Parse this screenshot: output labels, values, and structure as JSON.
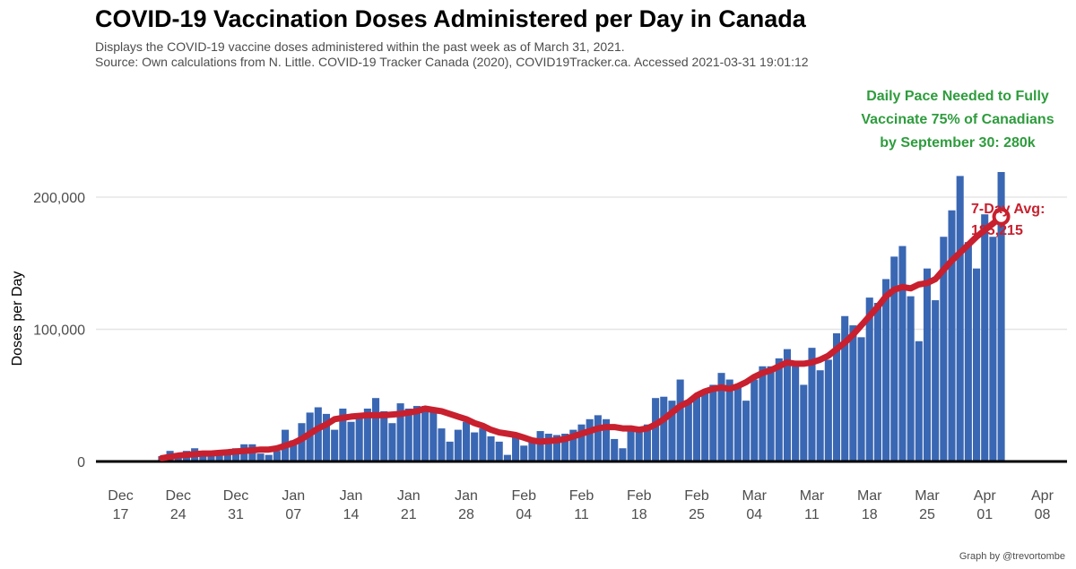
{
  "title": "COVID-19 Vaccination Doses Administered per Day in Canada",
  "subtitle_line1": "Displays the COVID-19 vaccine doses administered within the past week as of March 31, 2021.",
  "subtitle_line2": "Source: Own calculations from N. Little. COVID-19 Tracker Canada (2020), COVID19Tracker.ca. Accessed 2021-03-31 19:01:12",
  "caption": "Graph by @trevortombe",
  "colors": {
    "bar": "#3a67b3",
    "avg_line": "#c8202e",
    "annotation_green": "#2e9c3d",
    "annotation_red": "#c8202e",
    "grid": "#e5e5e5"
  },
  "annotations": {
    "pace_lines": [
      "Daily Pace Needed to Fully",
      "Vaccinate 75% of Canadians",
      "by September 30: 280k"
    ],
    "avg_lines": [
      "7-Day Avg:",
      "185,215"
    ]
  },
  "chart_data": {
    "type": "bar",
    "title": "COVID-19 Vaccination Doses Administered per Day in Canada",
    "ylabel": "Doses per Day",
    "xlabel": "",
    "x_start_date": "2020-12-14",
    "ylim": [
      0,
      240000
    ],
    "xlim_dates": [
      "2020-12-14",
      "2021-04-11"
    ],
    "y_ticks": [
      0,
      100000,
      200000
    ],
    "y_tick_labels": [
      "0",
      "100,000",
      "200,000"
    ],
    "x_ticks": [
      {
        "date": "2020-12-17",
        "line1": "Dec",
        "line2": "17"
      },
      {
        "date": "2020-12-24",
        "line1": "Dec",
        "line2": "24"
      },
      {
        "date": "2020-12-31",
        "line1": "Dec",
        "line2": "31"
      },
      {
        "date": "2021-01-07",
        "line1": "Jan",
        "line2": "07"
      },
      {
        "date": "2021-01-14",
        "line1": "Jan",
        "line2": "14"
      },
      {
        "date": "2021-01-21",
        "line1": "Jan",
        "line2": "21"
      },
      {
        "date": "2021-01-28",
        "line1": "Jan",
        "line2": "28"
      },
      {
        "date": "2021-02-04",
        "line1": "Feb",
        "line2": "04"
      },
      {
        "date": "2021-02-11",
        "line1": "Feb",
        "line2": "11"
      },
      {
        "date": "2021-02-18",
        "line1": "Feb",
        "line2": "18"
      },
      {
        "date": "2021-02-25",
        "line1": "Feb",
        "line2": "25"
      },
      {
        "date": "2021-03-04",
        "line1": "Mar",
        "line2": "04"
      },
      {
        "date": "2021-03-11",
        "line1": "Mar",
        "line2": "11"
      },
      {
        "date": "2021-03-18",
        "line1": "Mar",
        "line2": "18"
      },
      {
        "date": "2021-03-25",
        "line1": "Mar",
        "line2": "25"
      },
      {
        "date": "2021-04-01",
        "line1": "Apr",
        "line2": "01"
      },
      {
        "date": "2021-04-08",
        "line1": "Apr",
        "line2": "08"
      }
    ],
    "daily_start_date": "2020-12-22",
    "daily_doses": [
      4000,
      8000,
      6000,
      8000,
      10000,
      5000,
      6000,
      6000,
      7000,
      10000,
      13000,
      13000,
      6000,
      5000,
      8000,
      24000,
      16000,
      29000,
      37000,
      41000,
      36000,
      24000,
      40000,
      30000,
      36000,
      40000,
      48000,
      38000,
      29000,
      44000,
      40000,
      42000,
      42000,
      40000,
      25000,
      15000,
      24000,
      30000,
      22000,
      25000,
      19000,
      15000,
      5000,
      20000,
      12000,
      16000,
      23000,
      21000,
      20000,
      21000,
      24000,
      28000,
      32000,
      35000,
      32000,
      17000,
      10000,
      25000,
      23000,
      28000,
      48000,
      49000,
      46000,
      62000,
      46000,
      50000,
      52000,
      58000,
      67000,
      62000,
      58000,
      46000,
      62000,
      72000,
      72000,
      78000,
      85000,
      72000,
      58000,
      86000,
      69000,
      77000,
      97000,
      110000,
      103000,
      94000,
      124000,
      120000,
      138000,
      155000,
      163000,
      125000,
      91000,
      146000,
      122000,
      170000,
      190000,
      216000,
      166000,
      146000,
      187000,
      170000,
      219000
    ],
    "series": [
      {
        "name": "7-Day Avg",
        "start_date": "2020-12-22",
        "values": [
          2500,
          3500,
          4500,
          5000,
          5500,
          6000,
          6000,
          6500,
          7000,
          7500,
          8000,
          8500,
          9000,
          9000,
          10000,
          12000,
          14000,
          17000,
          21000,
          25000,
          28000,
          32000,
          33000,
          34000,
          34500,
          35000,
          35000,
          35000,
          35500,
          36000,
          37000,
          38000,
          40000,
          39000,
          38000,
          36000,
          34000,
          32000,
          29000,
          27000,
          24000,
          22000,
          21000,
          20000,
          18000,
          16000,
          15000,
          15500,
          16000,
          17000,
          19000,
          21000,
          23000,
          25000,
          26000,
          26000,
          25000,
          25000,
          24000,
          25000,
          28000,
          32000,
          37000,
          42000,
          45000,
          50000,
          53000,
          55000,
          56000,
          55000,
          57000,
          60000,
          64000,
          67000,
          69000,
          72000,
          75000,
          74000,
          74000,
          75000,
          77000,
          80000,
          85000,
          90000,
          96000,
          103000,
          110000,
          117000,
          125000,
          130000,
          132000,
          131000,
          134000,
          135000,
          138000,
          145000,
          152000,
          158000,
          164000,
          170000,
          175000,
          180000,
          185215
        ]
      }
    ],
    "last_avg_value": 185215,
    "grid": true,
    "legend": "none"
  }
}
